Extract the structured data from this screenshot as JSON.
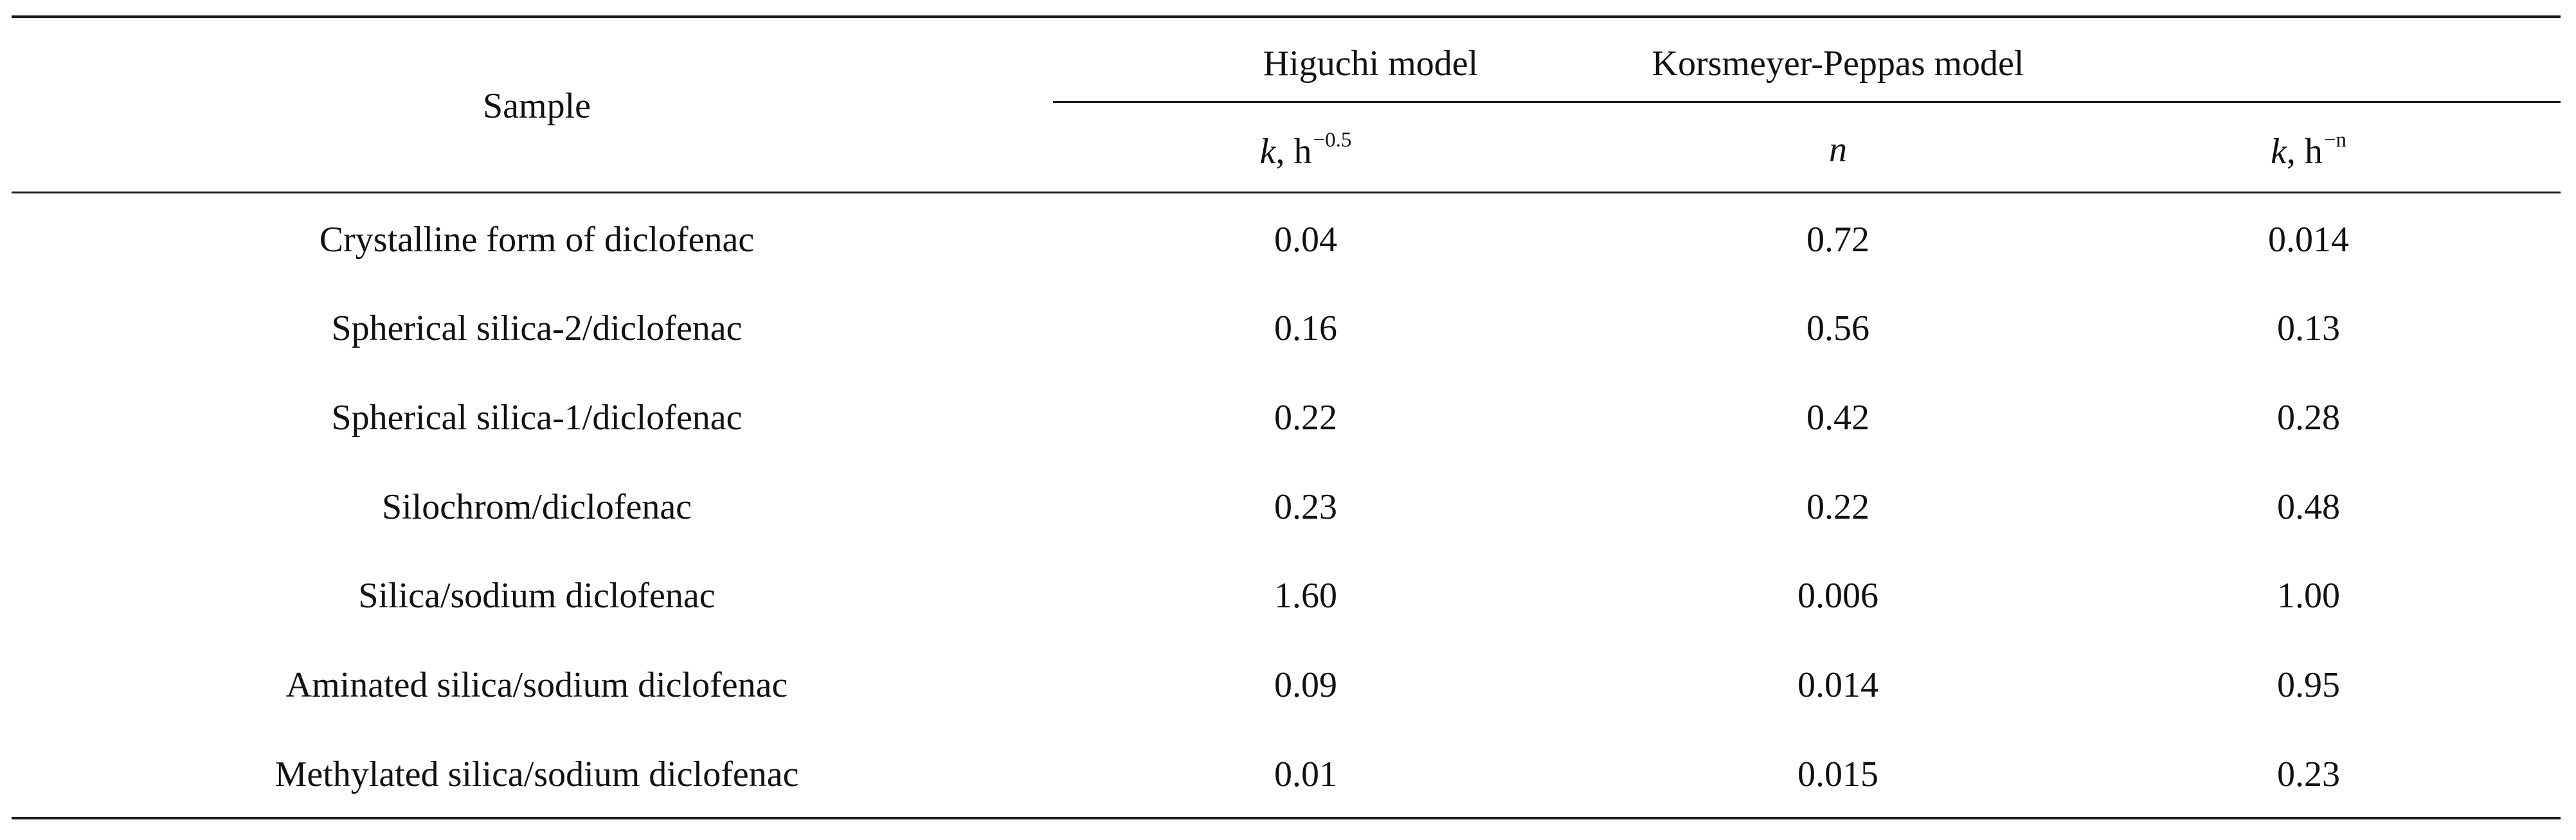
{
  "table": {
    "headers": {
      "sample": "Sample",
      "higuchi_group": "Higuchi model",
      "kp_group": "Korsmeyer-Peppas model",
      "higuchi_k": {
        "var": "k",
        "sep": ", ",
        "unit": "h",
        "exp": "−0.5"
      },
      "kp_n": {
        "var": "n"
      },
      "kp_k": {
        "var": "k",
        "sep": ", ",
        "unit": "h",
        "exp": "−n"
      }
    },
    "rows": [
      {
        "sample": "Crystalline form of diclofenac",
        "higuchi_k": "0.04",
        "kp_n": "0.72",
        "kp_k": "0.014"
      },
      {
        "sample": "Spherical silica-2/diclofenac",
        "higuchi_k": "0.16",
        "kp_n": "0.56",
        "kp_k": "0.13"
      },
      {
        "sample": "Spherical silica-1/diclofenac",
        "higuchi_k": "0.22",
        "kp_n": "0.42",
        "kp_k": "0.28"
      },
      {
        "sample": "Silochrom/diclofenac",
        "higuchi_k": "0.23",
        "kp_n": "0.22",
        "kp_k": "0.48"
      },
      {
        "sample": "Silica/sodium diclofenac",
        "higuchi_k": "1.60",
        "kp_n": "0.006",
        "kp_k": "1.00"
      },
      {
        "sample": "Aminated silica/sodium diclofenac",
        "higuchi_k": "0.09",
        "kp_n": "0.014",
        "kp_k": "0.95"
      },
      {
        "sample": "Methylated silica/sodium diclofenac",
        "higuchi_k": "0.01",
        "kp_n": "0.015",
        "kp_k": "0.23"
      }
    ]
  }
}
